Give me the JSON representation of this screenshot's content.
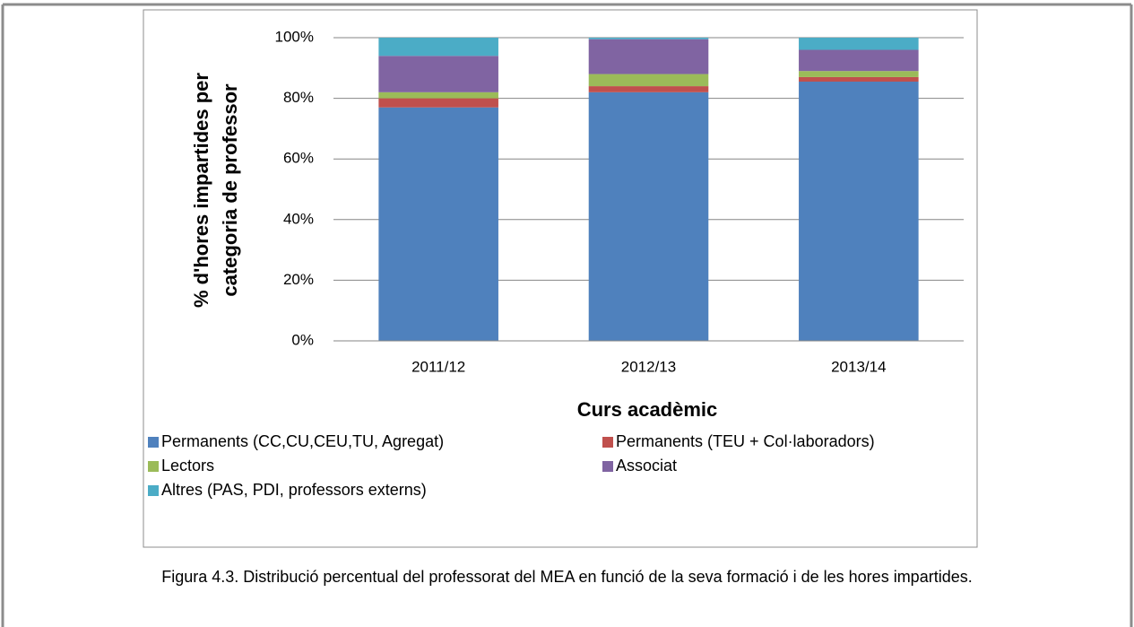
{
  "chart_data": {
    "type": "stacked_bar",
    "y_label": [
      "% d'hores impartides per",
      "categoria de professor"
    ],
    "x_label": "Curs acadèmic",
    "categories": [
      "2011/12",
      "2012/13",
      "2013/14"
    ],
    "series": [
      {
        "name": "Permanents (CC,CU,CEU,TU, Agregat)",
        "color": "#4f81bd",
        "values": [
          77,
          82,
          85.5
        ]
      },
      {
        "name": "Permanents (TEU + Col·laboradors)",
        "color": "#c0504d",
        "values": [
          3,
          2,
          1.5
        ]
      },
      {
        "name": "Lectors",
        "color": "#9bbb59",
        "values": [
          2,
          4,
          2
        ]
      },
      {
        "name": "Associat",
        "color": "#8064a2",
        "values": [
          12,
          11.5,
          7
        ]
      },
      {
        "name": "Altres (PAS, PDI, professors externs)",
        "color": "#4bacc6",
        "values": [
          6,
          0.5,
          4
        ]
      }
    ],
    "ylim": [
      0,
      100
    ],
    "yticks": [
      {
        "value": 0,
        "label": "0%"
      },
      {
        "value": 20,
        "label": "20%"
      },
      {
        "value": 40,
        "label": "40%"
      },
      {
        "value": 60,
        "label": "60%"
      },
      {
        "value": 80,
        "label": "80%"
      },
      {
        "value": 100,
        "label": "100%"
      }
    ],
    "grid": true,
    "legend": "bottom"
  },
  "caption": "Figura 4.3. Distribució percentual del professorat del MEA en funció de la seva formació i de les hores impartides."
}
